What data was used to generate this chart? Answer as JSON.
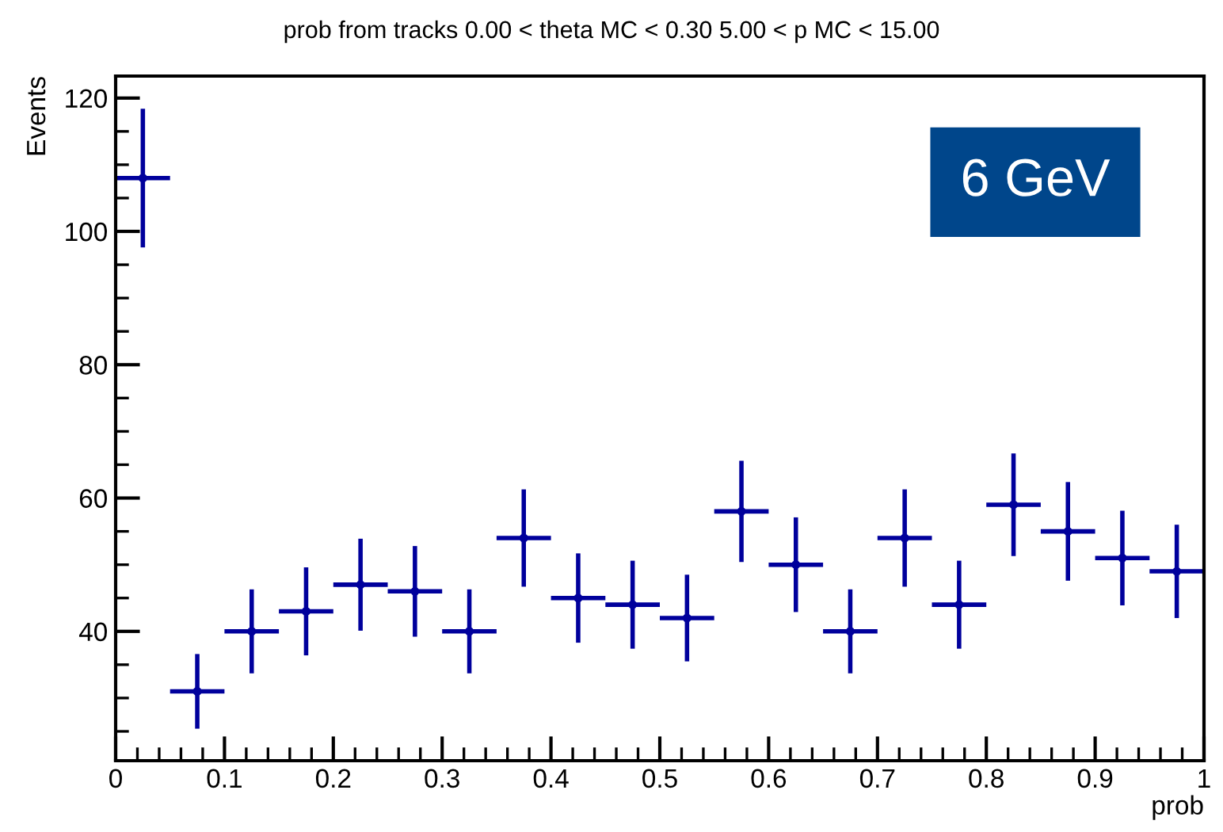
{
  "chart_data": {
    "type": "scatter",
    "title": "prob from tracks 0.00 < theta MC < 0.30 5.00 < p MC < 15.00",
    "xlabel": "prob",
    "ylabel": "Events",
    "annotations": [
      "6 GeV"
    ],
    "x": [
      0.025,
      0.075,
      0.125,
      0.175,
      0.225,
      0.275,
      0.325,
      0.375,
      0.425,
      0.475,
      0.525,
      0.575,
      0.625,
      0.675,
      0.725,
      0.775,
      0.825,
      0.875,
      0.925,
      0.975
    ],
    "series": [
      {
        "color": "#00009c",
        "marker": "circle",
        "values": [
          108,
          31,
          40,
          43,
          47,
          46,
          40,
          54,
          45,
          44,
          42,
          58,
          50,
          40,
          54,
          44,
          59,
          55,
          51,
          49
        ],
        "errors": [
          10.4,
          5.6,
          6.3,
          6.6,
          6.9,
          6.8,
          6.3,
          7.3,
          6.7,
          6.6,
          6.5,
          7.6,
          7.1,
          6.3,
          7.3,
          6.6,
          7.7,
          7.4,
          7.1,
          7.0
        ],
        "xerrors": [
          0.025,
          0.025,
          0.025,
          0.025,
          0.025,
          0.025,
          0.025,
          0.025,
          0.025,
          0.025,
          0.025,
          0.025,
          0.025,
          0.025,
          0.025,
          0.025,
          0.025,
          0.025,
          0.025,
          0.025
        ]
      }
    ],
    "xlim": [
      0,
      1
    ],
    "xticks": [
      0,
      0.1,
      0.2,
      0.3,
      0.4,
      0.5,
      0.6,
      0.7,
      0.8,
      0.9,
      1
    ],
    "ylim": [
      20.6,
      123.3
    ],
    "yticks": [
      40,
      60,
      80,
      100,
      120
    ],
    "grid": false,
    "legend": false
  }
}
